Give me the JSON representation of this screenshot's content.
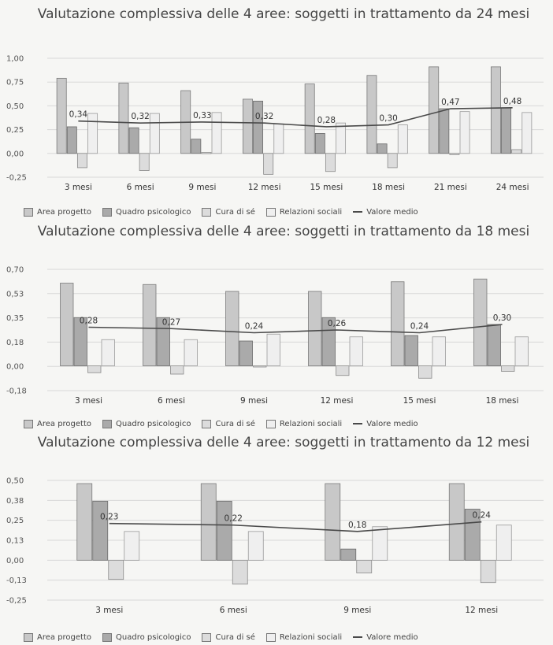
{
  "legend": [
    "Area progetto",
    "Quadro psicologico",
    "Cura di sé",
    "Relazioni sociali",
    "Valore medio"
  ],
  "colors": {
    "area": "#c8c8c8",
    "quadro": "#aaaaaa",
    "cura": "#dcdcdc",
    "relazioni": "#efefef",
    "medio": "#4a4a4a"
  },
  "chart_data": [
    {
      "type": "bar",
      "title": "Valutazione complessiva delle 4 aree: soggetti in trattamento da 24 mesi",
      "categories": [
        "3 mesi",
        "6 mesi",
        "9 mesi",
        "12 mesi",
        "15 mesi",
        "18 mesi",
        "21 mesi",
        "24 mesi"
      ],
      "ylim": [
        -0.25,
        1.0
      ],
      "yticks": [
        "1,00",
        "0,75",
        "0,50",
        "0,25",
        "0,00",
        "-0,25"
      ],
      "series": [
        {
          "name": "Area progetto",
          "values": [
            0.79,
            0.74,
            0.66,
            0.57,
            0.73,
            0.82,
            0.91,
            0.91
          ]
        },
        {
          "name": "Quadro psicologico",
          "values": [
            0.28,
            0.27,
            0.15,
            0.55,
            0.21,
            0.1,
            0.47,
            0.48
          ]
        },
        {
          "name": "Cura di sé",
          "values": [
            -0.15,
            -0.18,
            0.01,
            -0.22,
            -0.19,
            -0.15,
            0.0,
            0.04
          ]
        },
        {
          "name": "Relazioni sociali",
          "values": [
            0.42,
            0.42,
            0.43,
            0.31,
            0.32,
            0.3,
            0.44,
            0.43
          ]
        }
      ],
      "line": {
        "name": "Valore medio",
        "values": [
          0.34,
          0.32,
          0.33,
          0.32,
          0.28,
          0.3,
          0.47,
          0.48
        ],
        "labels": [
          "0,34",
          "0,32",
          "0,33",
          "0,32",
          "0,28",
          "0,30",
          "0,47",
          "0,48"
        ]
      }
    },
    {
      "type": "bar",
      "title": "Valutazione complessiva delle 4 aree: soggetti in trattamento da 18 mesi",
      "categories": [
        "3 mesi",
        "6 mesi",
        "9 mesi",
        "12 mesi",
        "15 mesi",
        "18 mesi"
      ],
      "ylim": [
        -0.18,
        0.7
      ],
      "yticks": [
        "0,70",
        "0,53",
        "0,35",
        "0,18",
        "0,00",
        "-0,18"
      ],
      "series": [
        {
          "name": "Area progetto",
          "values": [
            0.6,
            0.59,
            0.54,
            0.54,
            0.61,
            0.63
          ]
        },
        {
          "name": "Quadro psicologico",
          "values": [
            0.35,
            0.35,
            0.18,
            0.35,
            0.22,
            0.3
          ]
        },
        {
          "name": "Cura di sé",
          "values": [
            -0.05,
            -0.06,
            0.0,
            -0.07,
            -0.09,
            -0.04
          ]
        },
        {
          "name": "Relazioni sociali",
          "values": [
            0.19,
            0.19,
            0.23,
            0.21,
            0.21,
            0.21
          ]
        }
      ],
      "line": {
        "name": "Valore medio",
        "values": [
          0.28,
          0.27,
          0.24,
          0.26,
          0.24,
          0.3
        ],
        "labels": [
          "0,28",
          "0,27",
          "0,24",
          "0,26",
          "0,24",
          "0,30"
        ]
      }
    },
    {
      "type": "bar",
      "title": "Valutazione complessiva delle 4 aree: soggetti in trattamento da 12 mesi",
      "categories": [
        "3 mesi",
        "6 mesi",
        "9 mesi",
        "12 mesi"
      ],
      "ylim": [
        -0.25,
        0.5
      ],
      "yticks": [
        "0,50",
        "0,38",
        "0,25",
        "0,13",
        "0,00",
        "-0,13",
        "-0,25"
      ],
      "series": [
        {
          "name": "Area progetto",
          "values": [
            0.48,
            0.48,
            0.48,
            0.48
          ]
        },
        {
          "name": "Quadro psicologico",
          "values": [
            0.37,
            0.37,
            0.07,
            0.32
          ]
        },
        {
          "name": "Cura di sé",
          "values": [
            -0.12,
            -0.15,
            -0.08,
            -0.14
          ]
        },
        {
          "name": "Relazioni sociali",
          "values": [
            0.18,
            0.18,
            0.21,
            0.22
          ]
        }
      ],
      "line": {
        "name": "Valore medio",
        "values": [
          0.23,
          0.22,
          0.18,
          0.24
        ],
        "labels": [
          "0,23",
          "0,22",
          "0,18",
          "0,24"
        ]
      }
    }
  ]
}
